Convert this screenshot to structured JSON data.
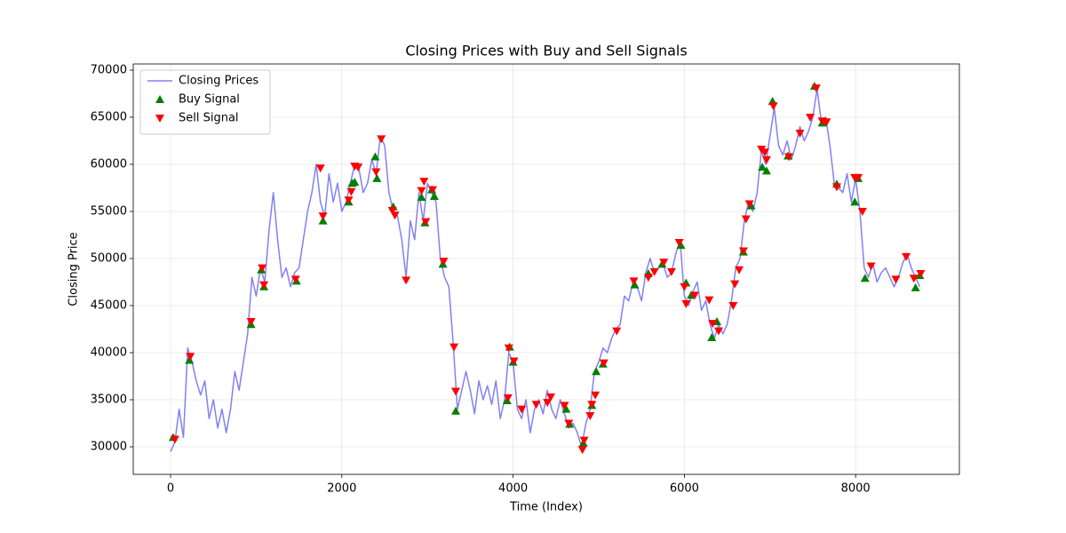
{
  "chart_data": {
    "type": "line",
    "title": "Closing Prices with Buy and Sell Signals",
    "x_label": "Time (Index)",
    "y_label": "Closing Price",
    "xlim": [
      -436,
      9212
    ],
    "ylim": [
      27075,
      70660
    ],
    "xticks": [
      0,
      2000,
      4000,
      6000,
      8000
    ],
    "yticks": [
      30000,
      35000,
      40000,
      45000,
      50000,
      55000,
      60000,
      65000,
      70000
    ],
    "grid": true,
    "legend": "upper left",
    "series": [
      {
        "name": "Closing Prices",
        "kind": "line",
        "color": "#4b4bf0",
        "x": [
          0,
          50,
          100,
          150,
          200,
          250,
          300,
          350,
          400,
          450,
          500,
          550,
          600,
          650,
          700,
          750,
          800,
          850,
          900,
          950,
          1000,
          1050,
          1100,
          1150,
          1200,
          1250,
          1300,
          1350,
          1400,
          1450,
          1500,
          1550,
          1600,
          1650,
          1700,
          1750,
          1800,
          1850,
          1900,
          1950,
          2000,
          2050,
          2100,
          2150,
          2200,
          2250,
          2300,
          2350,
          2400,
          2450,
          2500,
          2550,
          2600,
          2650,
          2700,
          2750,
          2800,
          2850,
          2900,
          2950,
          3000,
          3050,
          3100,
          3150,
          3200,
          3250,
          3300,
          3350,
          3400,
          3450,
          3500,
          3550,
          3600,
          3650,
          3700,
          3750,
          3800,
          3850,
          3900,
          3950,
          4000,
          4050,
          4100,
          4150,
          4200,
          4250,
          4300,
          4350,
          4400,
          4450,
          4500,
          4550,
          4600,
          4650,
          4700,
          4750,
          4800,
          4850,
          4900,
          4950,
          5000,
          5050,
          5100,
          5150,
          5200,
          5250,
          5300,
          5350,
          5400,
          5450,
          5500,
          5550,
          5600,
          5650,
          5700,
          5750,
          5800,
          5850,
          5900,
          5950,
          6000,
          6050,
          6100,
          6150,
          6200,
          6250,
          6300,
          6350,
          6400,
          6450,
          6500,
          6550,
          6600,
          6650,
          6700,
          6750,
          6800,
          6850,
          6900,
          6950,
          7000,
          7050,
          7100,
          7150,
          7200,
          7250,
          7300,
          7350,
          7400,
          7450,
          7500,
          7550,
          7600,
          7650,
          7700,
          7750,
          7800,
          7850,
          7900,
          7950,
          8000,
          8050,
          8100,
          8150,
          8200,
          8250,
          8300,
          8350,
          8400,
          8450,
          8500,
          8550,
          8600,
          8650,
          8700,
          8750
        ],
        "values": [
          29500,
          30500,
          34000,
          31000,
          40500,
          39000,
          37000,
          35500,
          37000,
          33000,
          35000,
          32000,
          34000,
          31500,
          34000,
          38000,
          36000,
          39000,
          42000,
          48000,
          46000,
          49000,
          47500,
          53000,
          57000,
          52000,
          48000,
          49000,
          47000,
          48500,
          49000,
          52000,
          55000,
          57000,
          60000,
          56000,
          54500,
          59000,
          56000,
          58000,
          55000,
          56000,
          58000,
          60000,
          59500,
          57000,
          58000,
          60500,
          59000,
          63000,
          62000,
          57000,
          55000,
          54500,
          52000,
          48000,
          54000,
          52000,
          57000,
          54000,
          58000,
          57000,
          56000,
          50000,
          48000,
          47000,
          41000,
          34000,
          36000,
          38000,
          36000,
          33500,
          37000,
          35000,
          36500,
          34500,
          37000,
          33000,
          35000,
          40000,
          39000,
          34000,
          33000,
          35000,
          31500,
          34000,
          35000,
          33500,
          36000,
          34000,
          33000,
          35000,
          33500,
          32000,
          32500,
          31500,
          30000,
          32500,
          34000,
          38000,
          39000,
          40500,
          40000,
          41500,
          42500,
          43000,
          46000,
          45500,
          47500,
          47000,
          45500,
          48500,
          50000,
          48500,
          49000,
          49500,
          48000,
          48500,
          50500,
          52000,
          46000,
          45000,
          46500,
          47500,
          44500,
          45500,
          43000,
          41500,
          43000,
          42000,
          43000,
          45500,
          49000,
          50000,
          54000,
          56000,
          55000,
          57000,
          61500,
          60000,
          63000,
          66000,
          62000,
          61000,
          62500,
          60500,
          62000,
          64000,
          62500,
          63500,
          65000,
          68000,
          64500,
          65000,
          62000,
          58000,
          57500,
          57000,
          59000,
          56000,
          58500,
          55000,
          49000,
          48000,
          49500,
          47500,
          48500,
          49000,
          48000,
          47000,
          48000,
          49500,
          50500,
          49000,
          48000,
          47000
        ]
      },
      {
        "name": "Buy Signal",
        "kind": "scatter",
        "marker": "^",
        "color": "#008000",
        "x": [
          30,
          220,
          940,
          1060,
          1090,
          1470,
          1780,
          2080,
          2120,
          2150,
          2390,
          2410,
          2600,
          2930,
          2970,
          3050,
          3080,
          3180,
          3330,
          3930,
          3960,
          4000,
          4620,
          4660,
          4820,
          4920,
          4970,
          5050,
          5420,
          5580,
          5740,
          5960,
          6020,
          6080,
          6320,
          6380,
          6690,
          6780,
          6910,
          6960,
          7030,
          7210,
          7520,
          7610,
          7780,
          7990,
          8030,
          8110,
          8700,
          8750
        ],
        "values": [
          31000,
          39200,
          43000,
          48800,
          47000,
          47600,
          54000,
          56000,
          58000,
          58100,
          60800,
          58500,
          55500,
          56500,
          53800,
          57300,
          56600,
          49400,
          33800,
          34900,
          40600,
          39000,
          34000,
          32400,
          30400,
          34400,
          38000,
          38800,
          47200,
          48400,
          49400,
          51400,
          47400,
          46100,
          41600,
          43300,
          50700,
          55600,
          59700,
          59300,
          66700,
          60900,
          68300,
          64400,
          57900,
          56000,
          58500,
          47900,
          46900,
          48200
        ]
      },
      {
        "name": "Sell Signal",
        "kind": "scatter",
        "marker": "v",
        "color": "#ff0000",
        "x": [
          50,
          230,
          940,
          1070,
          1090,
          1460,
          1780,
          1750,
          2080,
          2110,
          2150,
          2190,
          2400,
          2460,
          2590,
          2620,
          2750,
          2930,
          2960,
          2980,
          3060,
          3190,
          3310,
          3330,
          3940,
          3950,
          4010,
          4100,
          4270,
          4400,
          4440,
          4600,
          4650,
          4810,
          4830,
          4900,
          4920,
          4960,
          5060,
          5210,
          5410,
          5580,
          5650,
          5760,
          5850,
          5940,
          6000,
          6020,
          6120,
          6290,
          6330,
          6400,
          6570,
          6590,
          6640,
          6690,
          6720,
          6760,
          6900,
          6940,
          6960,
          7040,
          7220,
          7350,
          7470,
          7540,
          7610,
          7660,
          7780,
          7990,
          8030,
          8080,
          8180,
          8470,
          8590,
          8680,
          8760
        ],
        "values": [
          30800,
          39600,
          43300,
          49000,
          47200,
          47800,
          54500,
          59600,
          56200,
          57100,
          59800,
          59700,
          59200,
          62700,
          55100,
          54600,
          47700,
          57200,
          58200,
          53900,
          57300,
          49700,
          40600,
          35900,
          35200,
          40500,
          39100,
          34000,
          34500,
          34700,
          35300,
          34400,
          32500,
          29700,
          30700,
          33300,
          34500,
          35500,
          38900,
          42300,
          47600,
          48000,
          48600,
          49600,
          48600,
          51700,
          47000,
          45200,
          46100,
          45600,
          43100,
          42300,
          45000,
          47300,
          48800,
          50800,
          54200,
          55800,
          61600,
          61300,
          60500,
          66200,
          60800,
          63300,
          65000,
          68100,
          64600,
          64500,
          57600,
          58600,
          58600,
          55000,
          49200,
          47800,
          50200,
          47900,
          48400
        ]
      }
    ]
  }
}
